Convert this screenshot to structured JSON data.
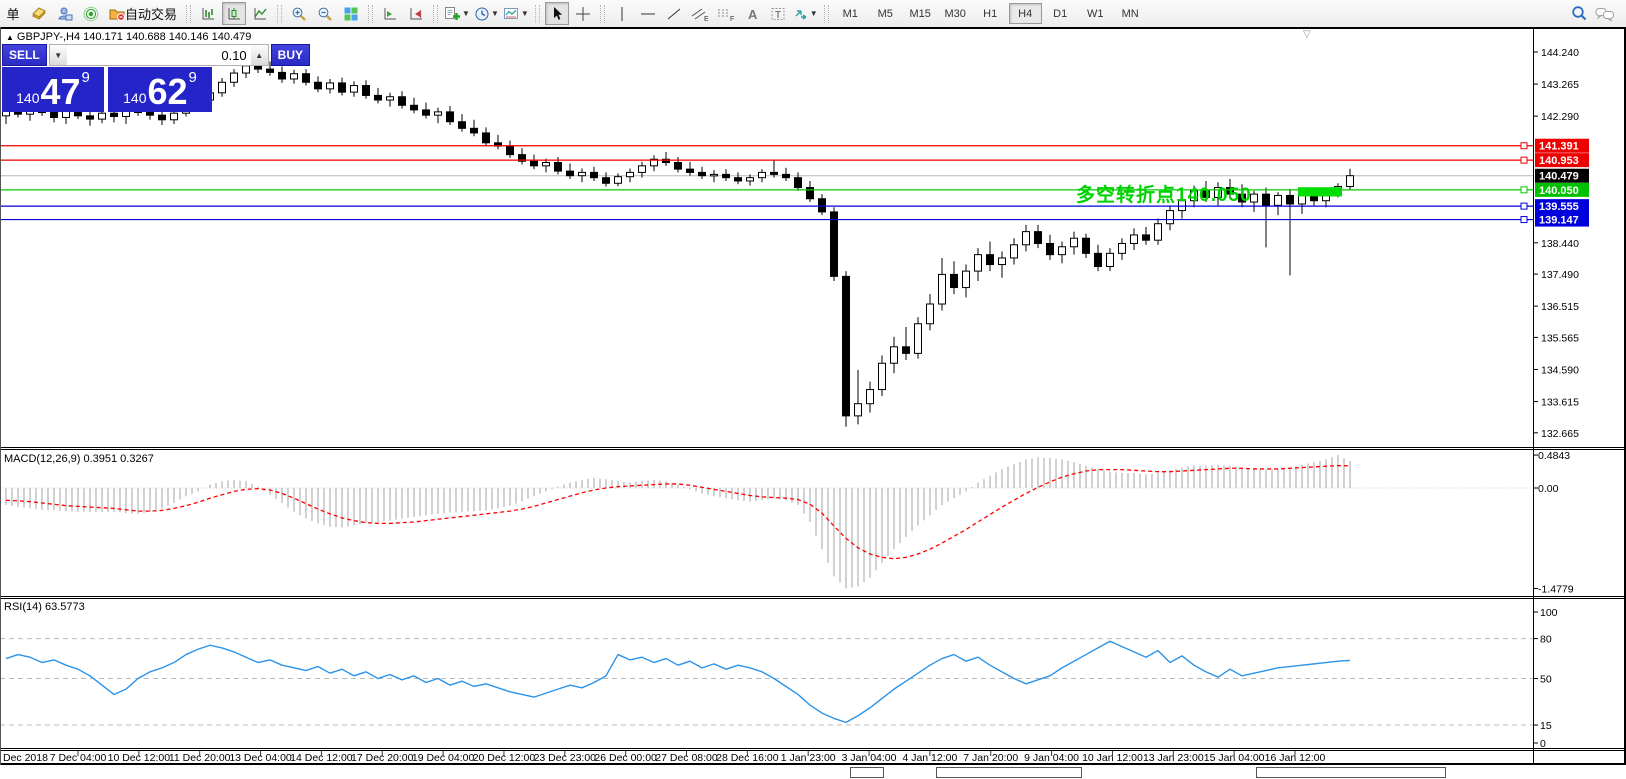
{
  "toolbar": {
    "new_order_label": "单",
    "autotrade_label": "自动交易",
    "timeframes": [
      "M1",
      "M5",
      "M15",
      "M30",
      "H1",
      "H4",
      "D1",
      "W1",
      "MN"
    ],
    "active_timeframe": "H4"
  },
  "symbol_header": {
    "marker": "▲",
    "text": "GBPJPY-,H4  140.171 140.688 140.146 140.479"
  },
  "trade_panel": {
    "sell_label": "SELL",
    "buy_label": "BUY",
    "lot_value": "0.10",
    "lot_down": "▼",
    "lot_up": "▲",
    "sell_prefix": "140",
    "sell_main": "47",
    "sell_sup": "9",
    "buy_prefix": "140",
    "buy_main": "62",
    "buy_sup": "9"
  },
  "annotation": {
    "text": "多空转折点140.050",
    "color": "#00d200"
  },
  "main_chart": {
    "price_axis_ticks": [
      "144.240",
      "143.265",
      "142.290",
      "138.440",
      "137.490",
      "136.515",
      "135.565",
      "134.590",
      "133.615",
      "132.665"
    ],
    "price_lines": [
      {
        "price": 141.391,
        "label": "141.391",
        "color": "#ee0000",
        "label_bg": "#ee0000"
      },
      {
        "price": 140.953,
        "label": "140.953",
        "color": "#ee0000",
        "label_bg": "#ee0000"
      },
      {
        "price": 140.479,
        "label": "140.479",
        "color": "#b8b8b8",
        "label_bg": "#000000",
        "is_current": true
      },
      {
        "price": 140.05,
        "label": "140.050",
        "color": "#00cc00",
        "label_bg": "#00c000"
      },
      {
        "price": 139.555,
        "label": "139.555",
        "color": "#0000dd",
        "label_bg": "#0000dd"
      },
      {
        "price": 139.147,
        "label": "139.147",
        "color": "#0000dd",
        "label_bg": "#0000dd"
      }
    ],
    "highlight_rect": {
      "from_bar": 108,
      "to_bar": 111,
      "price_top": 140.13,
      "price_bottom": 139.85,
      "color": "#00dd00"
    }
  },
  "macd_panel": {
    "label": "MACD(12,26,9) 0.3951 0.3267",
    "axis_ticks": [
      "0.4843",
      "0.00",
      "-1.4779"
    ]
  },
  "rsi_panel": {
    "label": "RSI(14) 63.5773",
    "axis_ticks": [
      "100",
      "80",
      "50",
      "15",
      "0"
    ],
    "levels": [
      80,
      50,
      15
    ]
  },
  "time_axis": [
    "Dec 2018",
    "7 Dec 04:00",
    "10 Dec 12:00",
    "11 Dec 20:00",
    "13 Dec 04:00",
    "14 Dec 12:00",
    "17 Dec 20:00",
    "19 Dec 04:00",
    "20 Dec 12:00",
    "23 Dec 23:00",
    "26 Dec 00:00",
    "27 Dec 08:00",
    "28 Dec 16:00",
    "1 Jan 23:00",
    "3 Jan 04:00",
    "4 Jan 12:00",
    "7 Jan 20:00",
    "9 Jan 04:00",
    "10 Jan 12:00",
    "13 Jan 23:00",
    "15 Jan 04:00",
    "16 Jan 12:00"
  ],
  "chart_data": {
    "type": "candlestick",
    "symbol": "GBPJPY",
    "timeframe": "H4",
    "price_axis_range": [
      132.2,
      144.7
    ],
    "ohlc": [
      [
        142.3,
        142.55,
        142.05,
        142.45
      ],
      [
        142.45,
        142.65,
        142.25,
        142.35
      ],
      [
        142.35,
        142.6,
        142.15,
        142.5
      ],
      [
        142.5,
        142.75,
        142.3,
        142.4
      ],
      [
        142.4,
        142.6,
        142.1,
        142.25
      ],
      [
        142.25,
        142.5,
        142.05,
        142.45
      ],
      [
        142.45,
        142.68,
        142.2,
        142.3
      ],
      [
        142.3,
        142.52,
        142.0,
        142.2
      ],
      [
        142.2,
        142.48,
        142.08,
        142.38
      ],
      [
        142.38,
        142.62,
        142.1,
        142.28
      ],
      [
        142.28,
        142.55,
        142.05,
        142.48
      ],
      [
        142.48,
        142.7,
        142.3,
        142.4
      ],
      [
        142.4,
        142.58,
        142.18,
        142.32
      ],
      [
        142.32,
        142.5,
        142.02,
        142.18
      ],
      [
        142.18,
        142.45,
        142.05,
        142.38
      ],
      [
        142.38,
        142.72,
        142.28,
        142.62
      ],
      [
        142.62,
        142.9,
        142.48,
        142.78
      ],
      [
        142.78,
        143.12,
        142.62,
        143.0
      ],
      [
        143.0,
        143.45,
        142.88,
        143.32
      ],
      [
        143.32,
        143.72,
        143.18,
        143.6
      ],
      [
        143.6,
        143.92,
        143.45,
        143.82
      ],
      [
        143.82,
        144.02,
        143.6,
        143.72
      ],
      [
        143.72,
        143.95,
        143.52,
        143.62
      ],
      [
        143.62,
        143.8,
        143.3,
        143.42
      ],
      [
        143.42,
        143.7,
        143.28,
        143.58
      ],
      [
        143.58,
        143.72,
        143.22,
        143.32
      ],
      [
        143.32,
        143.5,
        143.02,
        143.12
      ],
      [
        143.12,
        143.42,
        142.98,
        143.3
      ],
      [
        143.3,
        143.46,
        142.92,
        143.02
      ],
      [
        143.02,
        143.35,
        142.88,
        143.22
      ],
      [
        143.22,
        143.38,
        142.82,
        142.92
      ],
      [
        142.92,
        143.15,
        142.68,
        142.78
      ],
      [
        142.78,
        143.0,
        142.58,
        142.88
      ],
      [
        142.88,
        143.05,
        142.52,
        142.62
      ],
      [
        142.62,
        142.85,
        142.38,
        142.48
      ],
      [
        142.48,
        142.7,
        142.22,
        142.32
      ],
      [
        142.32,
        142.55,
        142.08,
        142.42
      ],
      [
        142.42,
        142.6,
        142.02,
        142.12
      ],
      [
        142.12,
        142.35,
        141.82,
        141.92
      ],
      [
        141.92,
        142.18,
        141.68,
        141.78
      ],
      [
        141.78,
        141.95,
        141.38,
        141.48
      ],
      [
        141.48,
        141.72,
        141.28,
        141.38
      ],
      [
        141.38,
        141.55,
        141.02,
        141.12
      ],
      [
        141.12,
        141.32,
        140.82,
        140.92
      ],
      [
        140.92,
        141.12,
        140.68,
        140.78
      ],
      [
        140.78,
        141.0,
        140.58,
        140.88
      ],
      [
        140.88,
        141.05,
        140.52,
        140.62
      ],
      [
        140.62,
        140.85,
        140.38,
        140.48
      ],
      [
        140.48,
        140.7,
        140.28,
        140.58
      ],
      [
        140.58,
        140.75,
        140.32,
        140.42
      ],
      [
        140.42,
        140.58,
        140.15,
        140.25
      ],
      [
        140.25,
        140.55,
        140.16,
        140.45
      ],
      [
        140.45,
        140.7,
        140.28,
        140.58
      ],
      [
        140.58,
        140.9,
        140.42,
        140.78
      ],
      [
        140.78,
        141.1,
        140.62,
        140.98
      ],
      [
        140.98,
        141.2,
        140.78,
        140.88
      ],
      [
        140.88,
        141.05,
        140.58,
        140.68
      ],
      [
        140.68,
        140.9,
        140.48,
        140.58
      ],
      [
        140.58,
        140.75,
        140.38,
        140.48
      ],
      [
        140.48,
        140.65,
        140.28,
        140.52
      ],
      [
        140.52,
        140.68,
        140.32,
        140.42
      ],
      [
        140.42,
        140.58,
        140.22,
        140.32
      ],
      [
        140.32,
        140.52,
        140.18,
        140.42
      ],
      [
        140.42,
        140.68,
        140.28,
        140.58
      ],
      [
        140.58,
        140.95,
        140.42,
        140.52
      ],
      [
        140.52,
        140.72,
        140.32,
        140.42
      ],
      [
        140.42,
        140.58,
        140.02,
        140.12
      ],
      [
        140.12,
        140.32,
        139.68,
        139.78
      ],
      [
        139.78,
        139.92,
        139.28,
        139.38
      ],
      [
        139.38,
        139.52,
        137.28,
        137.42
      ],
      [
        137.42,
        137.58,
        132.85,
        133.18
      ],
      [
        133.18,
        134.58,
        132.92,
        133.55
      ],
      [
        133.55,
        134.22,
        133.28,
        133.98
      ],
      [
        133.98,
        135.02,
        133.78,
        134.78
      ],
      [
        134.78,
        135.58,
        134.48,
        135.28
      ],
      [
        135.28,
        135.88,
        134.88,
        135.08
      ],
      [
        135.08,
        136.18,
        134.92,
        135.98
      ],
      [
        135.98,
        136.88,
        135.78,
        136.58
      ],
      [
        136.58,
        137.98,
        136.38,
        137.48
      ],
      [
        137.48,
        137.88,
        136.88,
        137.08
      ],
      [
        137.08,
        137.78,
        136.78,
        137.58
      ],
      [
        137.58,
        138.28,
        137.28,
        138.08
      ],
      [
        138.08,
        138.48,
        137.58,
        137.78
      ],
      [
        137.78,
        138.18,
        137.38,
        137.98
      ],
      [
        137.98,
        138.58,
        137.78,
        138.38
      ],
      [
        138.38,
        138.98,
        138.18,
        138.78
      ],
      [
        138.78,
        138.98,
        138.28,
        138.42
      ],
      [
        138.42,
        138.68,
        137.92,
        138.08
      ],
      [
        138.08,
        138.48,
        137.82,
        138.32
      ],
      [
        138.32,
        138.78,
        138.08,
        138.58
      ],
      [
        138.58,
        138.72,
        137.98,
        138.12
      ],
      [
        138.12,
        138.38,
        137.58,
        137.72
      ],
      [
        137.72,
        138.28,
        137.58,
        138.12
      ],
      [
        138.12,
        138.58,
        137.92,
        138.42
      ],
      [
        138.42,
        138.88,
        138.22,
        138.68
      ],
      [
        138.68,
        138.92,
        138.38,
        138.52
      ],
      [
        138.52,
        139.18,
        138.38,
        139.02
      ],
      [
        139.02,
        139.58,
        138.82,
        139.42
      ],
      [
        139.42,
        139.88,
        139.18,
        139.72
      ],
      [
        139.72,
        140.18,
        139.52,
        140.02
      ],
      [
        140.02,
        140.32,
        139.68,
        139.82
      ],
      [
        139.82,
        140.28,
        139.58,
        140.12
      ],
      [
        140.12,
        140.38,
        139.78,
        139.92
      ],
      [
        139.92,
        140.22,
        139.52,
        139.68
      ],
      [
        139.68,
        140.02,
        139.38,
        139.92
      ],
      [
        139.92,
        140.12,
        138.3,
        139.58
      ],
      [
        139.58,
        139.98,
        139.28,
        139.88
      ],
      [
        139.88,
        140.08,
        137.45,
        139.62
      ],
      [
        139.62,
        140.02,
        139.32,
        139.92
      ],
      [
        139.92,
        140.12,
        139.58,
        139.72
      ],
      [
        139.72,
        140.05,
        139.52,
        139.98
      ],
      [
        139.98,
        140.25,
        139.82,
        140.15
      ],
      [
        140.15,
        140.69,
        140.05,
        140.48
      ]
    ],
    "macd_histogram": [
      -0.25,
      -0.28,
      -0.3,
      -0.32,
      -0.33,
      -0.34,
      -0.35,
      -0.35,
      -0.35,
      -0.35,
      -0.37,
      -0.38,
      -0.35,
      -0.3,
      -0.22,
      -0.12,
      -0.05,
      0.05,
      0.1,
      0.12,
      0.1,
      0.02,
      -0.1,
      -0.22,
      -0.35,
      -0.45,
      -0.52,
      -0.57,
      -0.58,
      -0.55,
      -0.52,
      -0.5,
      -0.48,
      -0.45,
      -0.43,
      -0.4,
      -0.38,
      -0.36,
      -0.35,
      -0.34,
      -0.33,
      -0.3,
      -0.26,
      -0.2,
      -0.12,
      -0.05,
      0.02,
      0.08,
      0.12,
      0.15,
      0.13,
      0.1,
      0.08,
      0.1,
      0.12,
      0.1,
      0.05,
      -0.02,
      -0.08,
      -0.12,
      -0.15,
      -0.18,
      -0.2,
      -0.18,
      -0.15,
      -0.18,
      -0.25,
      -0.5,
      -0.9,
      -1.3,
      -1.4779,
      -1.45,
      -1.32,
      -1.1,
      -0.9,
      -0.72,
      -0.55,
      -0.4,
      -0.25,
      -0.15,
      -0.05,
      0.08,
      0.18,
      0.28,
      0.35,
      0.42,
      0.45,
      0.44,
      0.42,
      0.38,
      0.33,
      0.28,
      0.24,
      0.22,
      0.22,
      0.2,
      0.22,
      0.26,
      0.3,
      0.33,
      0.33,
      0.34,
      0.33,
      0.3,
      0.28,
      0.27,
      0.28,
      0.3,
      0.34,
      0.38,
      0.42,
      0.4843,
      0.3951
    ],
    "macd_signal": [
      -0.18,
      -0.19,
      -0.2,
      -0.22,
      -0.24,
      -0.26,
      -0.27,
      -0.28,
      -0.29,
      -0.3,
      -0.32,
      -0.34,
      -0.34,
      -0.33,
      -0.3,
      -0.26,
      -0.21,
      -0.15,
      -0.1,
      -0.05,
      -0.02,
      -0.01,
      -0.03,
      -0.08,
      -0.15,
      -0.23,
      -0.31,
      -0.38,
      -0.44,
      -0.48,
      -0.51,
      -0.52,
      -0.52,
      -0.51,
      -0.5,
      -0.48,
      -0.46,
      -0.44,
      -0.42,
      -0.4,
      -0.38,
      -0.36,
      -0.34,
      -0.31,
      -0.27,
      -0.22,
      -0.17,
      -0.12,
      -0.07,
      -0.03,
      0.0,
      0.02,
      0.03,
      0.04,
      0.05,
      0.06,
      0.06,
      0.04,
      0.01,
      -0.02,
      -0.05,
      -0.08,
      -0.11,
      -0.13,
      -0.14,
      -0.15,
      -0.17,
      -0.24,
      -0.37,
      -0.56,
      -0.74,
      -0.88,
      -0.97,
      -1.02,
      -1.04,
      -1.02,
      -0.97,
      -0.9,
      -0.81,
      -0.71,
      -0.61,
      -0.5,
      -0.39,
      -0.28,
      -0.18,
      -0.08,
      0.01,
      0.09,
      0.16,
      0.21,
      0.25,
      0.27,
      0.27,
      0.27,
      0.26,
      0.25,
      0.24,
      0.24,
      0.25,
      0.26,
      0.27,
      0.28,
      0.29,
      0.29,
      0.28,
      0.28,
      0.28,
      0.29,
      0.3,
      0.31,
      0.32,
      0.33,
      0.3267
    ],
    "rsi": [
      65,
      68,
      66,
      62,
      64,
      60,
      57,
      52,
      45,
      38,
      42,
      50,
      55,
      58,
      62,
      68,
      72,
      75,
      73,
      70,
      66,
      62,
      64,
      60,
      58,
      56,
      59,
      54,
      57,
      52,
      55,
      50,
      53,
      49,
      52,
      47,
      50,
      45,
      48,
      44,
      46,
      43,
      40,
      38,
      36,
      39,
      42,
      45,
      43,
      47,
      52,
      68,
      64,
      66,
      62,
      65,
      60,
      63,
      58,
      61,
      57,
      60,
      58,
      55,
      50,
      44,
      38,
      30,
      24,
      20,
      17,
      22,
      28,
      35,
      42,
      48,
      54,
      60,
      65,
      68,
      63,
      66,
      60,
      55,
      50,
      46,
      49,
      52,
      58,
      63,
      68,
      73,
      78,
      74,
      70,
      66,
      71,
      62,
      67,
      60,
      55,
      51,
      57,
      52,
      54,
      56,
      58,
      59,
      60,
      61,
      62,
      63,
      63.58
    ]
  }
}
